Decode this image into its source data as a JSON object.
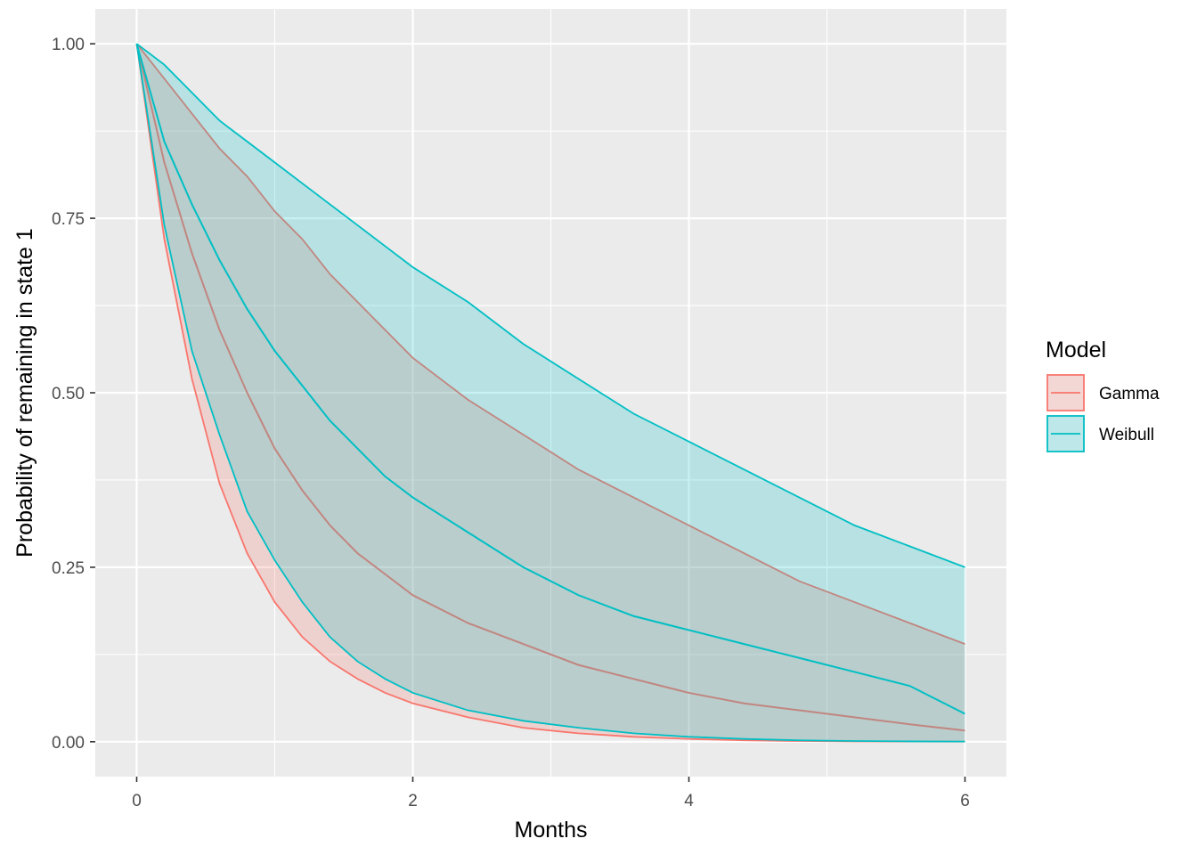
{
  "chart_data": {
    "type": "area",
    "xlabel": "Months",
    "ylabel": "Probability of remaining in state 1",
    "xlim": [
      -0.3,
      6.3
    ],
    "ylim": [
      -0.05,
      1.05
    ],
    "x_ticks": [
      0,
      2,
      4,
      6
    ],
    "x_tick_labels": [
      "0",
      "2",
      "4",
      "6"
    ],
    "y_ticks": [
      0,
      0.25,
      0.5,
      0.75,
      1.0
    ],
    "y_tick_labels": [
      "0.00",
      "0.25",
      "0.50",
      "0.75",
      "1.00"
    ],
    "grid": true,
    "legend": {
      "title": "Model",
      "position": "right"
    },
    "x": [
      0,
      0.2,
      0.4,
      0.6,
      0.8,
      1.0,
      1.2,
      1.4,
      1.6,
      1.8,
      2.0,
      2.4,
      2.8,
      3.2,
      3.6,
      4.0,
      4.4,
      4.8,
      5.2,
      5.6,
      6.0
    ],
    "series": [
      {
        "name": "Gamma",
        "color": "#F8766D",
        "fill": "#F8766D",
        "mean": [
          1.0,
          0.83,
          0.7,
          0.59,
          0.5,
          0.42,
          0.36,
          0.31,
          0.27,
          0.24,
          0.21,
          0.17,
          0.14,
          0.11,
          0.09,
          0.07,
          0.055,
          0.045,
          0.035,
          0.025,
          0.016
        ],
        "lower": [
          1.0,
          0.72,
          0.52,
          0.37,
          0.27,
          0.2,
          0.15,
          0.115,
          0.09,
          0.07,
          0.055,
          0.035,
          0.02,
          0.012,
          0.007,
          0.004,
          0.002,
          0.001,
          0.0005,
          0.0002,
          0.0001
        ],
        "upper": [
          1.0,
          0.95,
          0.9,
          0.85,
          0.81,
          0.76,
          0.72,
          0.67,
          0.63,
          0.59,
          0.55,
          0.49,
          0.44,
          0.39,
          0.35,
          0.31,
          0.27,
          0.23,
          0.2,
          0.17,
          0.14
        ]
      },
      {
        "name": "Weibull",
        "color": "#00BFC4",
        "fill": "#00BFC4",
        "mean": [
          1.0,
          0.86,
          0.77,
          0.69,
          0.62,
          0.56,
          0.51,
          0.46,
          0.42,
          0.38,
          0.35,
          0.3,
          0.25,
          0.21,
          0.18,
          0.16,
          0.14,
          0.12,
          0.1,
          0.08,
          0.04
        ],
        "lower": [
          1.0,
          0.74,
          0.56,
          0.44,
          0.33,
          0.26,
          0.2,
          0.15,
          0.115,
          0.09,
          0.07,
          0.045,
          0.03,
          0.02,
          0.012,
          0.007,
          0.004,
          0.002,
          0.001,
          0.0005,
          0.0002
        ],
        "upper": [
          1.0,
          0.97,
          0.93,
          0.89,
          0.86,
          0.83,
          0.8,
          0.77,
          0.74,
          0.71,
          0.68,
          0.63,
          0.57,
          0.52,
          0.47,
          0.43,
          0.39,
          0.35,
          0.31,
          0.28,
          0.25
        ]
      }
    ]
  }
}
